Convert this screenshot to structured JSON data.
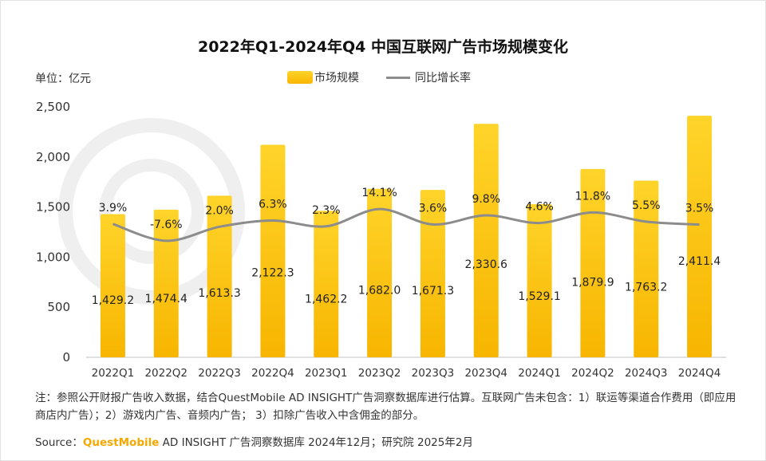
{
  "title": "2022年Q1-2024年Q4 中国互联网广告市场规模变化",
  "unit_label": "单位：亿元",
  "legend": {
    "bar": "市场规模",
    "line": "同比增长率"
  },
  "colors": {
    "bar_top": "#ffd42a",
    "bar_bottom": "#f7b500",
    "line": "#8c8c8c"
  },
  "note": "注：参照公开财报广告收入数据，结合QuestMobile AD INSIGHT广告洞察数据库进行估算。互联网广告未包含：1）联运等渠道合作费用（即应用商店内广告）；2）游戏内广告、音频内广告； 3）扣除广告收入中含佣金的部分。",
  "source": {
    "prefix": "Source：",
    "brand": "QuestMobile",
    "suffix": " AD INSIGHT 广告洞察数据库 2024年12月；研究院 2025年2月"
  },
  "chart_data": {
    "type": "bar",
    "categories": [
      "2022Q1",
      "2022Q2",
      "2022Q3",
      "2022Q4",
      "2023Q1",
      "2023Q2",
      "2023Q3",
      "2023Q4",
      "2024Q1",
      "2024Q2",
      "2024Q3",
      "2024Q4"
    ],
    "ylim": [
      0,
      2500
    ],
    "yticks": [
      0,
      500,
      1000,
      1500,
      2000,
      2500
    ],
    "ytick_labels": [
      "0",
      "500",
      "1,000",
      "1,500",
      "2,000",
      "2,500"
    ],
    "grid": false,
    "series": [
      {
        "name": "市场规模",
        "type": "bar",
        "values": [
          1429.2,
          1474.4,
          1613.3,
          2122.3,
          1462.2,
          1682.0,
          1671.3,
          2330.6,
          1529.1,
          1879.9,
          1763.2,
          2411.4
        ],
        "labels": [
          "1,429.2",
          "1,474.4",
          "1,613.3",
          "2,122.3",
          "1,462.2",
          "1,682.0",
          "1,671.3",
          "2,330.6",
          "1,529.1",
          "1,879.9",
          "1,763.2",
          "2,411.4"
        ]
      },
      {
        "name": "同比增长率",
        "type": "line",
        "values": [
          3.9,
          -7.6,
          2.0,
          6.3,
          2.3,
          14.1,
          3.6,
          9.8,
          4.6,
          11.8,
          5.5,
          3.5
        ],
        "labels": [
          "3.9%",
          "-7.6%",
          "2.0%",
          "6.3%",
          "2.3%",
          "14.1%",
          "3.6%",
          "9.8%",
          "4.6%",
          "11.8%",
          "5.5%",
          "3.5%"
        ]
      }
    ]
  }
}
